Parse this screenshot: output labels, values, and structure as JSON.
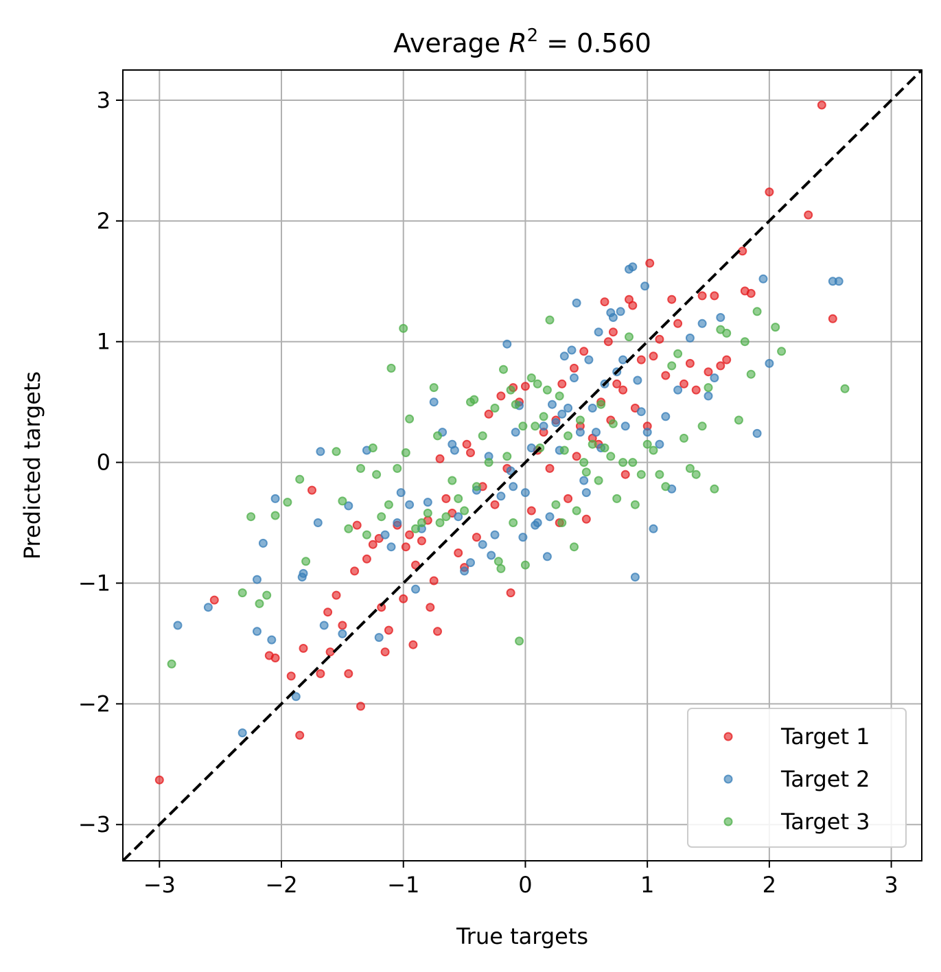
{
  "chart_data": {
    "type": "scatter",
    "title": "Average R² = 0.560",
    "title_parts": {
      "prefix": "Average ",
      "var": "R",
      "sup": "2",
      "suffix": " = 0.560"
    },
    "xlabel": "True targets",
    "ylabel": "Predicted targets",
    "xlim": [
      -3.3,
      3.25
    ],
    "ylim": [
      -3.3,
      3.25
    ],
    "xticks": [
      -3,
      -2,
      -1,
      0,
      1,
      2,
      3
    ],
    "yticks": [
      -3,
      -2,
      -1,
      0,
      1,
      2,
      3
    ],
    "xtick_labels": [
      "−3",
      "−2",
      "−1",
      "0",
      "1",
      "2",
      "3"
    ],
    "ytick_labels": [
      "−3",
      "−2",
      "−1",
      "0",
      "1",
      "2",
      "3"
    ],
    "grid": true,
    "legend_position": "lower-right",
    "reference_line": {
      "label": "y = x",
      "style": "dashed",
      "color": "#000000"
    },
    "series": [
      {
        "name": "Target 1",
        "color": "#e41a1c",
        "points": [
          [
            -3.0,
            -2.63
          ],
          [
            -2.55,
            -1.14
          ],
          [
            -2.1,
            -1.6
          ],
          [
            -2.05,
            -1.62
          ],
          [
            -1.92,
            -1.77
          ],
          [
            -1.85,
            -2.26
          ],
          [
            -1.82,
            -1.54
          ],
          [
            -1.75,
            -0.23
          ],
          [
            -1.68,
            -1.75
          ],
          [
            -1.62,
            -1.24
          ],
          [
            -1.6,
            -1.57
          ],
          [
            -1.55,
            -1.1
          ],
          [
            -1.5,
            -1.35
          ],
          [
            -1.45,
            -1.75
          ],
          [
            -1.4,
            -0.9
          ],
          [
            -1.38,
            -0.52
          ],
          [
            -1.35,
            -2.02
          ],
          [
            -1.3,
            -0.8
          ],
          [
            -1.25,
            -0.68
          ],
          [
            -1.2,
            -0.63
          ],
          [
            -1.18,
            -1.2
          ],
          [
            -1.15,
            -1.57
          ],
          [
            -1.12,
            -1.39
          ],
          [
            -1.05,
            -0.52
          ],
          [
            -1.0,
            -1.13
          ],
          [
            -0.98,
            -0.7
          ],
          [
            -0.95,
            -0.6
          ],
          [
            -0.92,
            -1.51
          ],
          [
            -0.9,
            -0.85
          ],
          [
            -0.85,
            -0.65
          ],
          [
            -0.8,
            -0.48
          ],
          [
            -0.78,
            -1.2
          ],
          [
            -0.75,
            -0.98
          ],
          [
            -0.72,
            -1.4
          ],
          [
            -0.7,
            0.03
          ],
          [
            -0.65,
            -0.3
          ],
          [
            -0.6,
            -0.42
          ],
          [
            -0.55,
            -0.75
          ],
          [
            -0.5,
            -0.87
          ],
          [
            -0.48,
            0.15
          ],
          [
            -0.45,
            0.08
          ],
          [
            -0.4,
            -0.62
          ],
          [
            -0.35,
            -0.2
          ],
          [
            -0.3,
            0.4
          ],
          [
            -0.25,
            -0.35
          ],
          [
            -0.2,
            0.55
          ],
          [
            -0.15,
            -0.05
          ],
          [
            -0.12,
            -1.08
          ],
          [
            -0.1,
            0.62
          ],
          [
            -0.05,
            0.5
          ],
          [
            0.0,
            0.63
          ],
          [
            0.05,
            -0.4
          ],
          [
            0.1,
            0.1
          ],
          [
            0.15,
            0.25
          ],
          [
            0.2,
            -0.05
          ],
          [
            0.25,
            0.35
          ],
          [
            0.28,
            -0.5
          ],
          [
            0.3,
            0.65
          ],
          [
            0.35,
            -0.3
          ],
          [
            0.4,
            0.78
          ],
          [
            0.42,
            0.05
          ],
          [
            0.45,
            0.3
          ],
          [
            0.48,
            0.92
          ],
          [
            0.5,
            -0.47
          ],
          [
            0.55,
            0.2
          ],
          [
            0.6,
            0.15
          ],
          [
            0.62,
            0.5
          ],
          [
            0.65,
            1.33
          ],
          [
            0.68,
            1.0
          ],
          [
            0.7,
            0.35
          ],
          [
            0.72,
            1.08
          ],
          [
            0.75,
            0.65
          ],
          [
            0.8,
            0.6
          ],
          [
            0.82,
            -0.1
          ],
          [
            0.85,
            1.35
          ],
          [
            0.88,
            1.3
          ],
          [
            0.9,
            0.45
          ],
          [
            0.95,
            0.85
          ],
          [
            1.0,
            0.3
          ],
          [
            1.02,
            1.65
          ],
          [
            1.05,
            0.88
          ],
          [
            1.1,
            1.02
          ],
          [
            1.15,
            0.72
          ],
          [
            1.2,
            1.35
          ],
          [
            1.25,
            1.15
          ],
          [
            1.3,
            0.65
          ],
          [
            1.35,
            0.82
          ],
          [
            1.4,
            0.6
          ],
          [
            1.45,
            1.38
          ],
          [
            1.5,
            0.75
          ],
          [
            1.55,
            1.38
          ],
          [
            1.6,
            0.8
          ],
          [
            1.65,
            0.85
          ],
          [
            1.78,
            1.75
          ],
          [
            1.8,
            1.42
          ],
          [
            1.85,
            1.4
          ],
          [
            2.0,
            2.24
          ],
          [
            2.32,
            2.05
          ],
          [
            2.43,
            2.96
          ],
          [
            2.52,
            1.19
          ]
        ]
      },
      {
        "name": "Target 2",
        "color": "#377eb8",
        "points": [
          [
            -2.85,
            -1.35
          ],
          [
            -2.6,
            -1.2
          ],
          [
            -2.32,
            -2.24
          ],
          [
            -2.2,
            -1.4
          ],
          [
            -2.2,
            -0.97
          ],
          [
            -2.15,
            -0.67
          ],
          [
            -2.08,
            -1.47
          ],
          [
            -2.05,
            -0.3
          ],
          [
            -1.88,
            -1.94
          ],
          [
            -1.83,
            -0.95
          ],
          [
            -1.82,
            -0.92
          ],
          [
            -1.7,
            -0.5
          ],
          [
            -1.68,
            0.09
          ],
          [
            -1.65,
            -1.35
          ],
          [
            -1.5,
            -1.42
          ],
          [
            -1.45,
            -0.36
          ],
          [
            -1.3,
            0.1
          ],
          [
            -1.2,
            -1.45
          ],
          [
            -1.15,
            -0.6
          ],
          [
            -1.1,
            -0.7
          ],
          [
            -1.05,
            -0.5
          ],
          [
            -1.02,
            -0.25
          ],
          [
            -0.95,
            -0.35
          ],
          [
            -0.9,
            -1.05
          ],
          [
            -0.85,
            -0.55
          ],
          [
            -0.8,
            -0.33
          ],
          [
            -0.75,
            0.5
          ],
          [
            -0.68,
            0.25
          ],
          [
            -0.6,
            0.15
          ],
          [
            -0.58,
            0.1
          ],
          [
            -0.55,
            -0.45
          ],
          [
            -0.5,
            -0.9
          ],
          [
            -0.45,
            -0.83
          ],
          [
            -0.4,
            -0.23
          ],
          [
            -0.35,
            -0.68
          ],
          [
            -0.3,
            0.05
          ],
          [
            -0.28,
            -0.77
          ],
          [
            -0.25,
            -0.6
          ],
          [
            -0.2,
            -0.28
          ],
          [
            -0.15,
            0.98
          ],
          [
            -0.12,
            -0.07
          ],
          [
            -0.1,
            -0.2
          ],
          [
            -0.08,
            0.25
          ],
          [
            -0.05,
            0.47
          ],
          [
            -0.02,
            -0.62
          ],
          [
            0.0,
            -0.25
          ],
          [
            0.05,
            0.12
          ],
          [
            0.08,
            -0.52
          ],
          [
            0.1,
            -0.5
          ],
          [
            0.15,
            0.3
          ],
          [
            0.18,
            -0.78
          ],
          [
            0.2,
            -0.45
          ],
          [
            0.22,
            0.48
          ],
          [
            0.25,
            0.33
          ],
          [
            0.28,
            0.1
          ],
          [
            0.3,
            0.4
          ],
          [
            0.32,
            0.88
          ],
          [
            0.35,
            0.45
          ],
          [
            0.38,
            0.93
          ],
          [
            0.4,
            0.7
          ],
          [
            0.42,
            1.32
          ],
          [
            0.45,
            0.25
          ],
          [
            0.48,
            -0.15
          ],
          [
            0.5,
            -0.25
          ],
          [
            0.52,
            0.85
          ],
          [
            0.55,
            0.45
          ],
          [
            0.58,
            0.25
          ],
          [
            0.6,
            1.08
          ],
          [
            0.62,
            0.12
          ],
          [
            0.65,
            0.65
          ],
          [
            0.7,
            1.24
          ],
          [
            0.72,
            1.2
          ],
          [
            0.75,
            0.75
          ],
          [
            0.78,
            1.25
          ],
          [
            0.8,
            0.85
          ],
          [
            0.82,
            0.3
          ],
          [
            0.85,
            1.6
          ],
          [
            0.88,
            1.62
          ],
          [
            0.9,
            -0.95
          ],
          [
            0.92,
            0.68
          ],
          [
            0.95,
            0.42
          ],
          [
            0.98,
            1.46
          ],
          [
            1.0,
            0.25
          ],
          [
            1.05,
            -0.55
          ],
          [
            1.1,
            0.15
          ],
          [
            1.15,
            0.38
          ],
          [
            1.2,
            -0.22
          ],
          [
            1.25,
            0.6
          ],
          [
            1.35,
            1.03
          ],
          [
            1.45,
            1.15
          ],
          [
            1.5,
            0.55
          ],
          [
            1.55,
            0.7
          ],
          [
            1.6,
            1.2
          ],
          [
            1.9,
            0.24
          ],
          [
            1.95,
            1.52
          ],
          [
            2.0,
            0.82
          ],
          [
            2.52,
            1.5
          ],
          [
            2.57,
            1.5
          ]
        ]
      },
      {
        "name": "Target 3",
        "color": "#4daf4a",
        "points": [
          [
            -2.9,
            -1.67
          ],
          [
            -2.32,
            -1.08
          ],
          [
            -2.25,
            -0.45
          ],
          [
            -2.18,
            -1.17
          ],
          [
            -2.12,
            -1.1
          ],
          [
            -2.05,
            -0.44
          ],
          [
            -1.95,
            -0.33
          ],
          [
            -1.85,
            -0.14
          ],
          [
            -1.8,
            -0.82
          ],
          [
            -1.55,
            0.09
          ],
          [
            -1.5,
            -0.32
          ],
          [
            -1.45,
            -0.55
          ],
          [
            -1.35,
            -0.05
          ],
          [
            -1.3,
            -0.6
          ],
          [
            -1.25,
            0.12
          ],
          [
            -1.22,
            -0.1
          ],
          [
            -1.18,
            -0.45
          ],
          [
            -1.12,
            -0.35
          ],
          [
            -1.1,
            0.78
          ],
          [
            -1.05,
            -0.05
          ],
          [
            -1.0,
            1.11
          ],
          [
            -0.98,
            0.08
          ],
          [
            -0.95,
            0.36
          ],
          [
            -0.9,
            -0.55
          ],
          [
            -0.85,
            -0.5
          ],
          [
            -0.8,
            -0.42
          ],
          [
            -0.75,
            0.62
          ],
          [
            -0.72,
            0.22
          ],
          [
            -0.7,
            -0.5
          ],
          [
            -0.65,
            -0.45
          ],
          [
            -0.6,
            -0.15
          ],
          [
            -0.55,
            -0.3
          ],
          [
            -0.5,
            -0.4
          ],
          [
            -0.45,
            0.5
          ],
          [
            -0.42,
            0.52
          ],
          [
            -0.4,
            -0.2
          ],
          [
            -0.35,
            0.22
          ],
          [
            -0.3,
            0.0
          ],
          [
            -0.25,
            0.45
          ],
          [
            -0.22,
            -0.82
          ],
          [
            -0.2,
            -0.88
          ],
          [
            -0.18,
            0.77
          ],
          [
            -0.15,
            0.05
          ],
          [
            -0.12,
            0.6
          ],
          [
            -0.1,
            -0.5
          ],
          [
            -0.08,
            0.48
          ],
          [
            -0.05,
            -1.48
          ],
          [
            -0.02,
            0.3
          ],
          [
            0.0,
            -0.85
          ],
          [
            0.05,
            0.7
          ],
          [
            0.08,
            0.3
          ],
          [
            0.1,
            0.65
          ],
          [
            0.12,
            0.12
          ],
          [
            0.15,
            0.38
          ],
          [
            0.18,
            0.6
          ],
          [
            0.2,
            1.18
          ],
          [
            0.25,
            -0.35
          ],
          [
            0.28,
            0.55
          ],
          [
            0.3,
            -0.5
          ],
          [
            0.32,
            0.1
          ],
          [
            0.35,
            0.22
          ],
          [
            0.4,
            -0.7
          ],
          [
            0.42,
            -0.4
          ],
          [
            0.45,
            0.35
          ],
          [
            0.48,
            0.0
          ],
          [
            0.5,
            -0.08
          ],
          [
            0.55,
            0.15
          ],
          [
            0.6,
            -0.15
          ],
          [
            0.62,
            0.48
          ],
          [
            0.65,
            0.12
          ],
          [
            0.7,
            0.05
          ],
          [
            0.72,
            0.32
          ],
          [
            0.75,
            -0.3
          ],
          [
            0.8,
            0.0
          ],
          [
            0.85,
            1.04
          ],
          [
            0.88,
            0.0
          ],
          [
            0.9,
            -0.35
          ],
          [
            0.95,
            -0.1
          ],
          [
            1.0,
            0.15
          ],
          [
            1.05,
            0.1
          ],
          [
            1.1,
            -0.1
          ],
          [
            1.15,
            -0.2
          ],
          [
            1.2,
            0.8
          ],
          [
            1.25,
            0.9
          ],
          [
            1.3,
            0.2
          ],
          [
            1.35,
            -0.05
          ],
          [
            1.4,
            -0.1
          ],
          [
            1.45,
            0.3
          ],
          [
            1.5,
            0.62
          ],
          [
            1.55,
            -0.22
          ],
          [
            1.6,
            1.1
          ],
          [
            1.65,
            1.07
          ],
          [
            1.75,
            0.35
          ],
          [
            1.8,
            1.0
          ],
          [
            1.85,
            0.73
          ],
          [
            1.9,
            1.25
          ],
          [
            2.05,
            1.12
          ],
          [
            2.1,
            0.92
          ],
          [
            2.62,
            0.61
          ]
        ]
      }
    ]
  }
}
